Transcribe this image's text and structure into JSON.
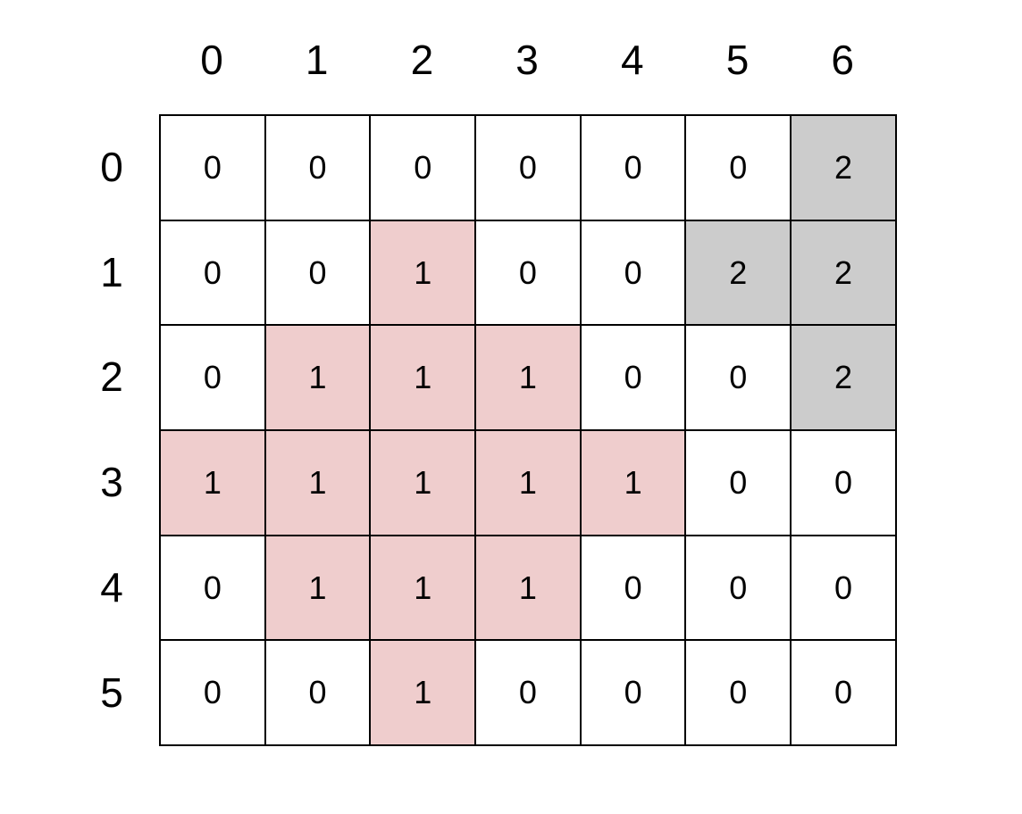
{
  "column_labels": [
    "0",
    "1",
    "2",
    "3",
    "4",
    "5",
    "6"
  ],
  "row_labels": [
    "0",
    "1",
    "2",
    "3",
    "4",
    "5"
  ],
  "grid": [
    [
      0,
      0,
      0,
      0,
      0,
      0,
      2
    ],
    [
      0,
      0,
      1,
      0,
      0,
      2,
      2
    ],
    [
      0,
      1,
      1,
      1,
      0,
      0,
      2
    ],
    [
      1,
      1,
      1,
      1,
      1,
      0,
      0
    ],
    [
      0,
      1,
      1,
      1,
      0,
      0,
      0
    ],
    [
      0,
      0,
      1,
      0,
      0,
      0,
      0
    ]
  ],
  "colors": {
    "0": "#ffffff",
    "1": "#efcdcd",
    "2": "#cccccc"
  }
}
